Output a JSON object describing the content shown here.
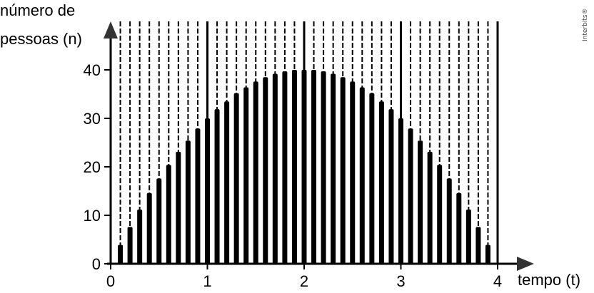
{
  "chart_data": {
    "type": "bar",
    "title": "",
    "ylabel_line1": "número de",
    "ylabel_line2": "pessoas (n)",
    "xlabel": "tempo (t)",
    "watermark": "Interbits®",
    "xlim": [
      0,
      4
    ],
    "ylim": [
      0,
      40
    ],
    "x_ticks": [
      "0",
      "1",
      "2",
      "3",
      "4"
    ],
    "y_ticks": [
      "0",
      "10",
      "20",
      "30",
      "40"
    ],
    "grid": "dashed vertical lines",
    "bar_color": "#000000",
    "x": [
      0.1,
      0.2,
      0.3,
      0.4,
      0.5,
      0.6,
      0.7,
      0.8,
      0.9,
      1.0,
      1.1,
      1.2,
      1.3,
      1.4,
      1.5,
      1.6,
      1.7,
      1.8,
      1.9,
      2.0,
      2.1,
      2.2,
      2.3,
      2.4,
      2.5,
      2.6,
      2.7,
      2.8,
      2.9,
      3.0,
      3.1,
      3.2,
      3.3,
      3.4,
      3.5,
      3.6,
      3.7,
      3.8,
      3.9
    ],
    "values": [
      3.9,
      7.6,
      11.2,
      14.6,
      17.6,
      20.4,
      23.1,
      25.4,
      27.9,
      30.0,
      31.9,
      33.5,
      35.2,
      36.4,
      37.6,
      38.5,
      39.2,
      39.7,
      40.0,
      40.0,
      40.0,
      39.7,
      39.2,
      38.5,
      37.6,
      36.4,
      35.2,
      33.5,
      31.9,
      30.0,
      27.9,
      25.4,
      23.1,
      20.4,
      17.6,
      14.6,
      11.2,
      7.6,
      3.9
    ]
  }
}
